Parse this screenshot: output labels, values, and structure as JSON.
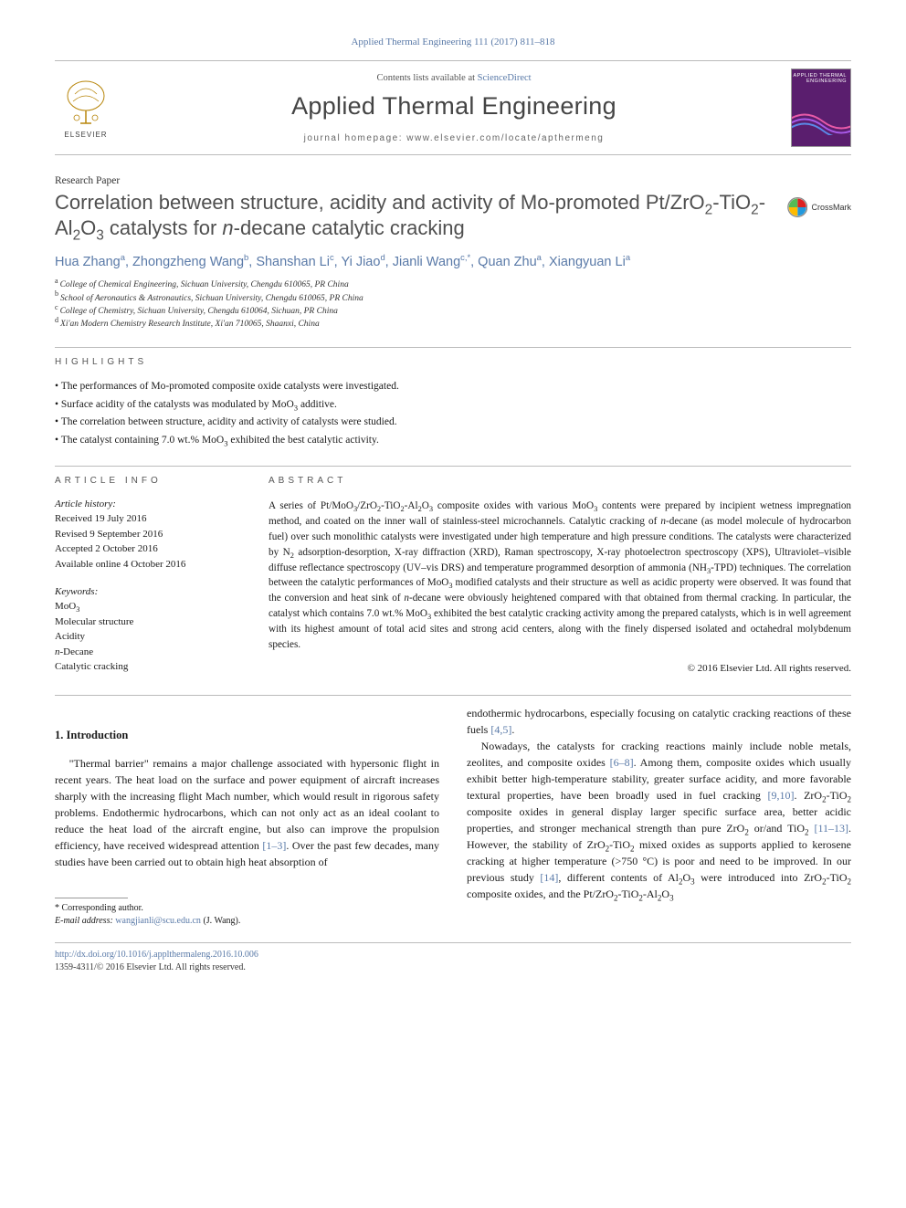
{
  "colors": {
    "link": "#5a7aa8",
    "title_gray": "#4f4f4f",
    "rule": "#bbbbbb",
    "cover_bg": "#5a1e6e"
  },
  "citation": "Applied Thermal Engineering 111 (2017) 811–818",
  "masthead": {
    "publisher": "ELSEVIER",
    "contents_prefix": "Contents lists available at ",
    "contents_link": "ScienceDirect",
    "journal": "Applied Thermal Engineering",
    "homepage_prefix": "journal homepage: ",
    "homepage": "www.elsevier.com/locate/apthermeng",
    "cover_title": "APPLIED THERMAL ENGINEERING"
  },
  "article_type": "Research Paper",
  "title_html": "Correlation between structure, acidity and activity of Mo-promoted Pt/ZrO<sub>2</sub>-TiO<sub>2</sub>-Al<sub>2</sub>O<sub>3</sub> catalysts for <i>n</i>-decane catalytic cracking",
  "crossmark": "CrossMark",
  "authors_html": "Hua Zhang<sup>a</sup>, Zhongzheng Wang<sup>b</sup>, Shanshan Li<sup>c</sup>, Yi Jiao<sup>d</sup>, Jianli Wang<sup>c,*</sup>, Quan Zhu<sup>a</sup>, Xiangyuan Li<sup>a</sup>",
  "affiliations": [
    {
      "sup": "a",
      "text": "College of Chemical Engineering, Sichuan University, Chengdu 610065, PR China"
    },
    {
      "sup": "b",
      "text": "School of Aeronautics & Astronautics, Sichuan University, Chengdu 610065, PR China"
    },
    {
      "sup": "c",
      "text": "College of Chemistry, Sichuan University, Chengdu 610064, Sichuan, PR China"
    },
    {
      "sup": "d",
      "text": "Xi'an Modern Chemistry Research Institute, Xi'an 710065, Shaanxi, China"
    }
  ],
  "highlights": {
    "label": "highlights",
    "items_html": [
      "The performances of Mo-promoted composite oxide catalysts were investigated.",
      "Surface acidity of the catalysts was modulated by MoO<sub>3</sub> additive.",
      "The correlation between structure, acidity and activity of catalysts were studied.",
      "The catalyst containing 7.0 wt.% MoO<sub>3</sub> exhibited the best catalytic activity."
    ]
  },
  "article_info": {
    "label": "article info",
    "history_head": "Article history:",
    "history": [
      "Received 19 July 2016",
      "Revised 9 September 2016",
      "Accepted 2 October 2016",
      "Available online 4 October 2016"
    ],
    "keywords_head": "Keywords:",
    "keywords_html": [
      "MoO<sub>3</sub>",
      "Molecular structure",
      "Acidity",
      "<i>n</i>-Decane",
      "Catalytic cracking"
    ]
  },
  "abstract": {
    "label": "abstract",
    "text_html": "A series of Pt/MoO<sub>3</sub>/ZrO<sub>2</sub>-TiO<sub>2</sub>-Al<sub>2</sub>O<sub>3</sub> composite oxides with various MoO<sub>3</sub> contents were prepared by incipient wetness impregnation method, and coated on the inner wall of stainless-steel microchannels. Catalytic cracking of <i>n</i>-decane (as model molecule of hydrocarbon fuel) over such monolithic catalysts were investigated under high temperature and high pressure conditions. The catalysts were characterized by N<sub>2</sub> adsorption-desorption, X-ray diffraction (XRD), Raman spectroscopy, X-ray photoelectron spectroscopy (XPS), Ultraviolet–visible diffuse reflectance spectroscopy (UV–vis DRS) and temperature programmed desorption of ammonia (NH<sub>3</sub>-TPD) techniques. The correlation between the catalytic performances of MoO<sub>3</sub> modified catalysts and their structure as well as acidic property were observed. It was found that the conversion and heat sink of <i>n</i>-decane were obviously heightened compared with that obtained from thermal cracking. In particular, the catalyst which contains 7.0 wt.% MoO<sub>3</sub> exhibited the best catalytic cracking activity among the prepared catalysts, which is in well agreement with its highest amount of total acid sites and strong acid centers, along with the finely dispersed isolated and octahedral molybdenum species.",
    "copyright": "© 2016 Elsevier Ltd. All rights reserved."
  },
  "intro": {
    "heading": "1. Introduction",
    "para1_html": "\"Thermal barrier\" remains a major challenge associated with hypersonic flight in recent years. The heat load on the surface and power equipment of aircraft increases sharply with the increasing flight Mach number, which would result in rigorous safety problems. Endothermic hydrocarbons, which can not only act as an ideal coolant to reduce the heat load of the aircraft engine, but also can improve the propulsion efficiency, have received widespread attention <a class=\"ref-link\" href=\"#\">[1–3]</a>. Over the past few decades, many studies have been carried out to obtain high heat absorption of",
    "para2_html": "endothermic hydrocarbons, especially focusing on catalytic cracking reactions of these fuels <a class=\"ref-link\" href=\"#\">[4,5]</a>.",
    "para3_html": "Nowadays, the catalysts for cracking reactions mainly include noble metals, zeolites, and composite oxides <a class=\"ref-link\" href=\"#\">[6–8]</a>. Among them, composite oxides which usually exhibit better high-temperature stability, greater surface acidity, and more favorable textural properties, have been broadly used in fuel cracking <a class=\"ref-link\" href=\"#\">[9,10]</a>. ZrO<sub>2</sub>-TiO<sub>2</sub> composite oxides in general display larger specific surface area, better acidic properties, and stronger mechanical strength than pure ZrO<sub>2</sub> or/and TiO<sub>2</sub> <a class=\"ref-link\" href=\"#\">[11–13]</a>. However, the stability of ZrO<sub>2</sub>-TiO<sub>2</sub> mixed oxides as supports applied to kerosene cracking at higher temperature (>750 °C) is poor and need to be improved. In our previous study <a class=\"ref-link\" href=\"#\">[14]</a>, different contents of Al<sub>2</sub>O<sub>3</sub> were introduced into ZrO<sub>2</sub>-TiO<sub>2</sub> composite oxides, and the Pt/ZrO<sub>2</sub>-TiO<sub>2</sub>-Al<sub>2</sub>O<sub>3</sub>"
  },
  "footnote": {
    "corr": "* Corresponding author.",
    "email_label": "E-mail address:",
    "email": "wangjianli@scu.edu.cn",
    "email_name": "(J. Wang)."
  },
  "bottom": {
    "doi": "http://dx.doi.org/10.1016/j.applthermaleng.2016.10.006",
    "issn_line": "1359-4311/© 2016 Elsevier Ltd. All rights reserved."
  }
}
